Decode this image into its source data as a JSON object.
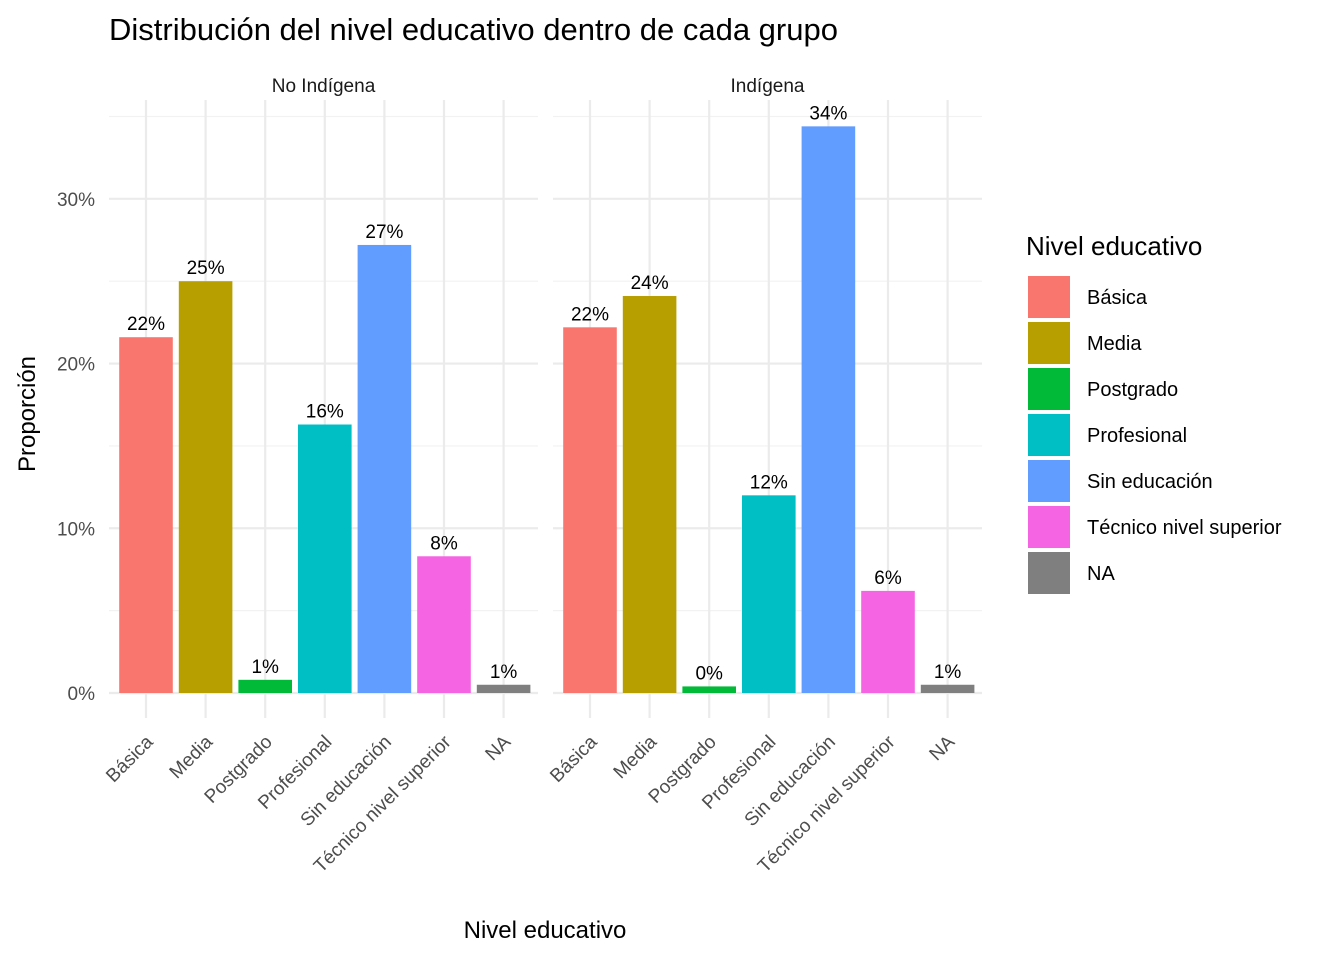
{
  "chart_data": {
    "type": "bar",
    "title": "Distribución del nivel educativo dentro de cada grupo",
    "xlabel": "Nivel educativo",
    "ylabel": "Proporción",
    "ylim": [
      0,
      0.36
    ],
    "y_ticks": [
      0,
      0.1,
      0.2,
      0.3
    ],
    "y_tick_labels": [
      "0%",
      "10%",
      "20%",
      "30%"
    ],
    "grid": true,
    "legend_position": "right",
    "legend_title": "Nivel educativo",
    "categories": [
      "Básica",
      "Media",
      "Postgrado",
      "Profesional",
      "Sin educación",
      "Técnico nivel superior",
      "NA"
    ],
    "colors": [
      "#F8766D",
      "#B79F00",
      "#00BA38",
      "#00BFC4",
      "#619CFF",
      "#F564E3",
      "#7F7F7F"
    ],
    "panels": [
      {
        "name": "No Indígena",
        "values": [
          0.216,
          0.25,
          0.008,
          0.163,
          0.272,
          0.083,
          0.005
        ],
        "labels": [
          "22%",
          "25%",
          "1%",
          "16%",
          "27%",
          "8%",
          "1%"
        ]
      },
      {
        "name": "Indígena",
        "values": [
          0.222,
          0.241,
          0.004,
          0.12,
          0.344,
          0.062,
          0.005
        ],
        "labels": [
          "22%",
          "24%",
          "0%",
          "12%",
          "34%",
          "6%",
          "1%"
        ]
      }
    ]
  }
}
